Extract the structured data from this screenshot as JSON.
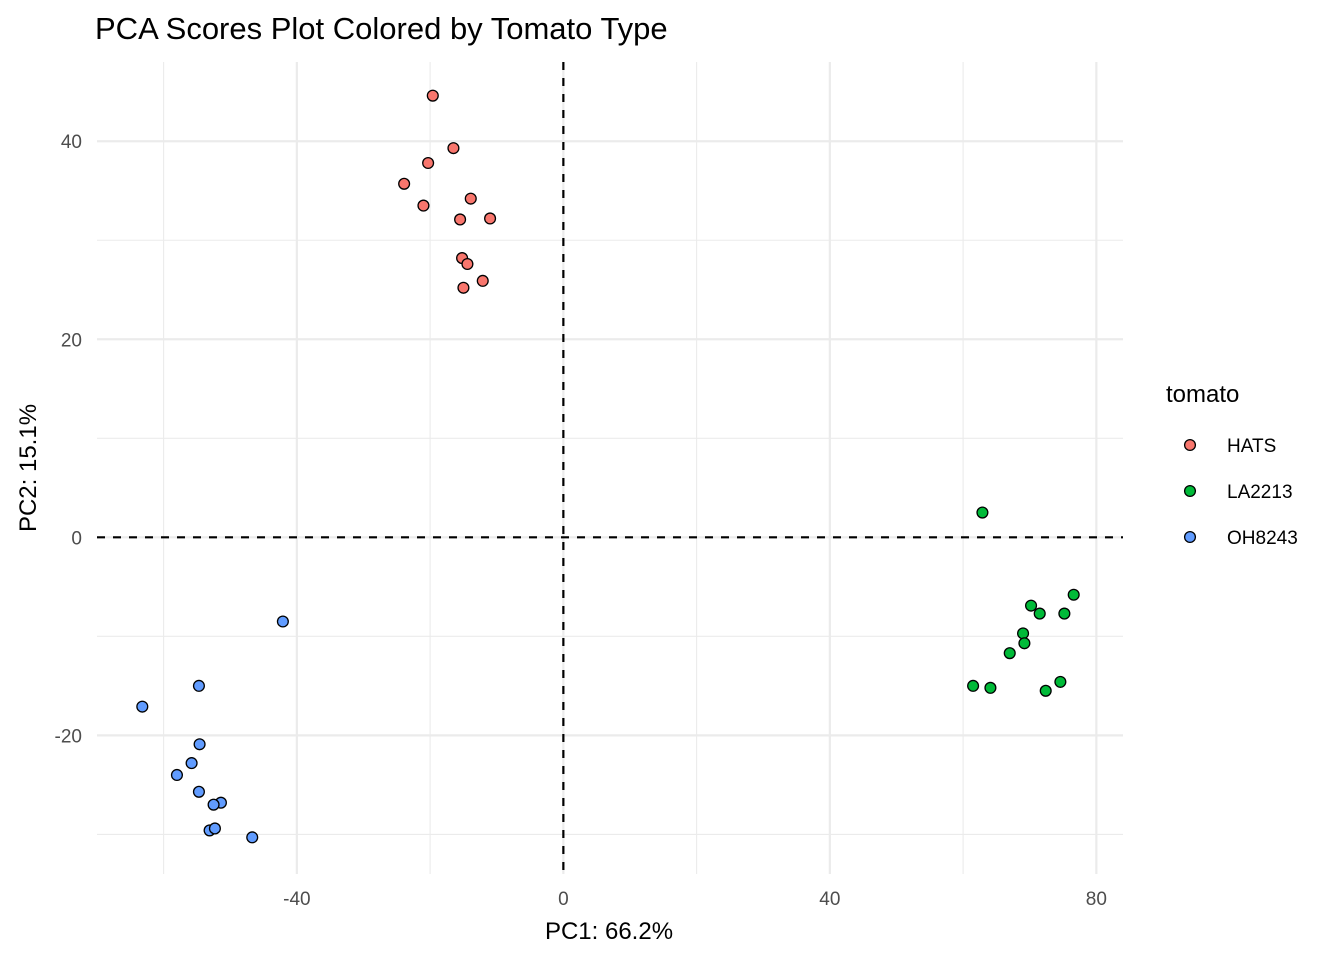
{
  "chart_data": {
    "type": "scatter",
    "title": "PCA Scores Plot Colored by Tomato Type",
    "xlabel": "PC1: 66.2%",
    "ylabel": "PC2: 15.1%",
    "xlim": [
      -70,
      84
    ],
    "ylim": [
      -34,
      48
    ],
    "x_major_ticks": [
      -40,
      0,
      40,
      80
    ],
    "x_minor_ticks": [
      -60,
      -20,
      20,
      60
    ],
    "y_major_ticks": [
      -20,
      0,
      20,
      40
    ],
    "y_minor_ticks": [
      -30,
      -10,
      10,
      30
    ],
    "x_tick_labels": [
      "-40",
      "0",
      "40",
      "80"
    ],
    "y_tick_labels": [
      "-20",
      "0",
      "20",
      "40"
    ],
    "reference_lines": {
      "x": 0,
      "y": 0,
      "style": "dashed"
    },
    "grid": true,
    "legend": {
      "title": "tomato",
      "placement": "right"
    },
    "series": [
      {
        "name": "HATS",
        "color": "#F8766D",
        "points": [
          {
            "x": -19.6,
            "y": 44.6
          },
          {
            "x": -16.5,
            "y": 39.3
          },
          {
            "x": -20.3,
            "y": 37.8
          },
          {
            "x": -23.9,
            "y": 35.7
          },
          {
            "x": -21.0,
            "y": 33.5
          },
          {
            "x": -13.9,
            "y": 34.2
          },
          {
            "x": -15.5,
            "y": 32.1
          },
          {
            "x": -11.0,
            "y": 32.2
          },
          {
            "x": -15.2,
            "y": 28.2
          },
          {
            "x": -14.4,
            "y": 27.6
          },
          {
            "x": -12.1,
            "y": 25.9
          },
          {
            "x": -15.0,
            "y": 25.2
          }
        ]
      },
      {
        "name": "LA2213",
        "color": "#00BA38",
        "points": [
          {
            "x": 62.9,
            "y": 2.5
          },
          {
            "x": 76.6,
            "y": -5.8
          },
          {
            "x": 70.2,
            "y": -6.9
          },
          {
            "x": 71.5,
            "y": -7.7
          },
          {
            "x": 75.2,
            "y": -7.7
          },
          {
            "x": 69.0,
            "y": -9.7
          },
          {
            "x": 69.2,
            "y": -10.7
          },
          {
            "x": 67.0,
            "y": -11.7
          },
          {
            "x": 61.5,
            "y": -15.0
          },
          {
            "x": 64.1,
            "y": -15.2
          },
          {
            "x": 72.4,
            "y": -15.5
          },
          {
            "x": 74.6,
            "y": -14.6
          }
        ]
      },
      {
        "name": "OH8243",
        "color": "#619CFF",
        "points": [
          {
            "x": -42.1,
            "y": -8.5
          },
          {
            "x": -54.7,
            "y": -15.0
          },
          {
            "x": -63.2,
            "y": -17.1
          },
          {
            "x": -54.6,
            "y": -20.9
          },
          {
            "x": -55.8,
            "y": -22.8
          },
          {
            "x": -58.0,
            "y": -24.0
          },
          {
            "x": -54.7,
            "y": -25.7
          },
          {
            "x": -51.4,
            "y": -26.8
          },
          {
            "x": -52.5,
            "y": -27.0
          },
          {
            "x": -53.1,
            "y": -29.6
          },
          {
            "x": -52.3,
            "y": -29.4
          },
          {
            "x": -46.7,
            "y": -30.3
          }
        ]
      }
    ]
  }
}
